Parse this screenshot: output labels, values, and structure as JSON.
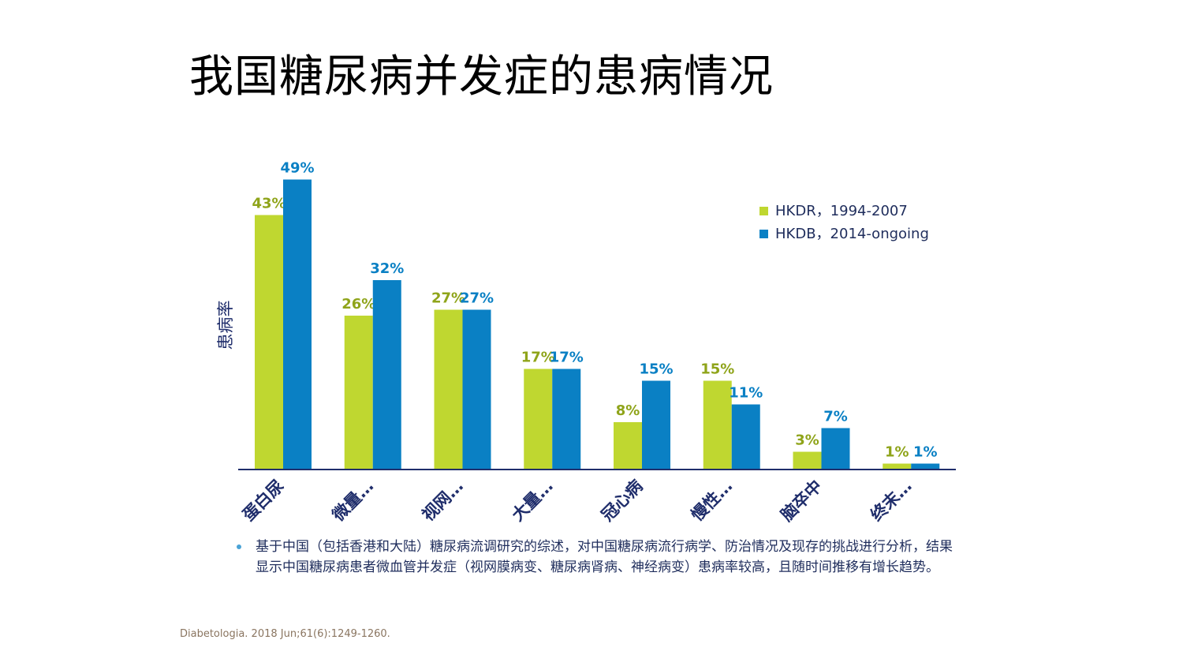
{
  "title": "我国糖尿病并发症的患病情况",
  "chart_data": {
    "type": "bar",
    "ylabel": "患病率",
    "ylim": [
      0,
      50
    ],
    "categories": [
      "蛋白尿",
      "微量…",
      "视网…",
      "大量…",
      "冠心病",
      "慢性…",
      "脑卒中",
      "终末…"
    ],
    "series": [
      {
        "name": "HKDR，1994-2007",
        "color": "#bfd730",
        "label_color": "#8fa41a",
        "values": [
          43,
          26,
          27,
          17,
          8,
          15,
          3,
          1
        ],
        "labels": [
          "43%",
          "26%",
          "27%",
          "17%",
          "8%",
          "15%",
          "3%",
          "1%"
        ]
      },
      {
        "name": "HKDB，2014-ongoing",
        "color": "#0a80c4",
        "label_color": "#0a80c4",
        "values": [
          49,
          32,
          27,
          17,
          15,
          11,
          7,
          1
        ],
        "labels": [
          "49%",
          "32%",
          "27%",
          "17%",
          "15%",
          "11%",
          "7%",
          "1%"
        ]
      }
    ],
    "legend": "top-right",
    "axis_color": "#1f2d6b",
    "category_color": "#1f2d6b"
  },
  "bullet": "基于中国（包括香港和大陆）糖尿病流调研究的综述，对中国糖尿病流行病学、防治情况及现存的挑战进行分析，结果显示中国糖尿病患者微血管并发症（视网膜病变、糖尿病肾病、神经病变）患病率较高，且随时间推移有增长趋势。",
  "citation": "Diabetologia. 2018 Jun;61(6):1249-1260."
}
